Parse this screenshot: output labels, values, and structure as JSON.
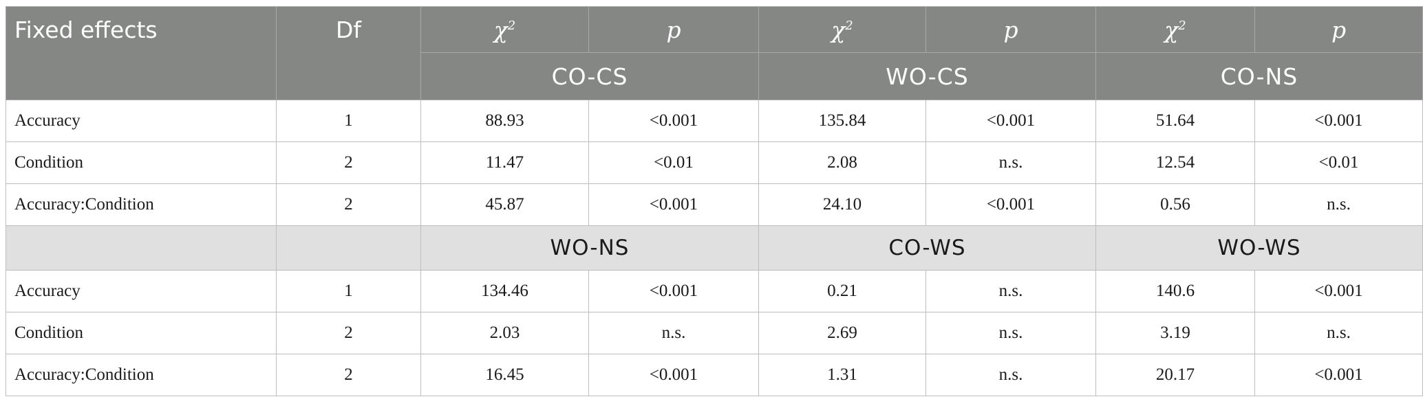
{
  "header": {
    "fixed_effects": "Fixed effects",
    "df": "Df",
    "chi_symbol": "χ",
    "chi_superscript": "2",
    "p_symbol": "p",
    "groups_top": [
      "CO-CS",
      "WO-CS",
      "CO-NS"
    ]
  },
  "section_top": {
    "rows": [
      {
        "effect": "Accuracy",
        "df": "1",
        "values": [
          "88.93",
          "<0.001",
          "135.84",
          "<0.001",
          "51.64",
          "<0.001"
        ]
      },
      {
        "effect": "Condition",
        "df": "2",
        "values": [
          "11.47",
          "<0.01",
          "2.08",
          "n.s.",
          "12.54",
          "<0.01"
        ]
      },
      {
        "effect": "Accuracy:Condition",
        "df": "2",
        "values": [
          "45.87",
          "<0.001",
          "24.10",
          "<0.001",
          "0.56",
          "n.s."
        ]
      }
    ]
  },
  "section_bottom": {
    "groups": [
      "WO-NS",
      "CO-WS",
      "WO-WS"
    ],
    "rows": [
      {
        "effect": "Accuracy",
        "df": "1",
        "values": [
          "134.46",
          "<0.001",
          "0.21",
          "n.s.",
          "140.6",
          "<0.001"
        ]
      },
      {
        "effect": "Condition",
        "df": "2",
        "values": [
          "2.03",
          "n.s.",
          "2.69",
          "n.s.",
          "3.19",
          "n.s."
        ]
      },
      {
        "effect": "Accuracy:Condition",
        "df": "2",
        "values": [
          "16.45",
          "<0.001",
          "1.31",
          "n.s.",
          "20.17",
          "<0.001"
        ]
      }
    ]
  }
}
